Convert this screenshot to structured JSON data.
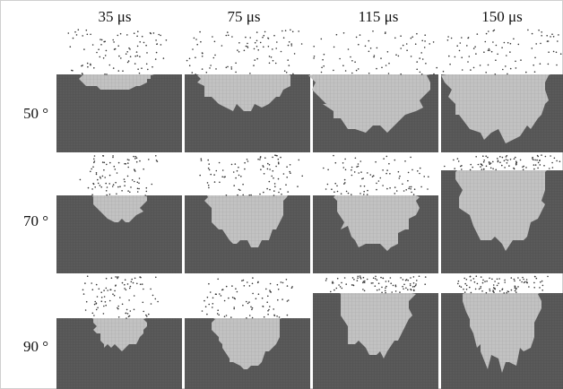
{
  "columns": [
    "35 μs",
    "75 μs",
    "115 μs",
    "150 μs"
  ],
  "rows": [
    "50 °",
    "70 °",
    "90 °"
  ]
}
